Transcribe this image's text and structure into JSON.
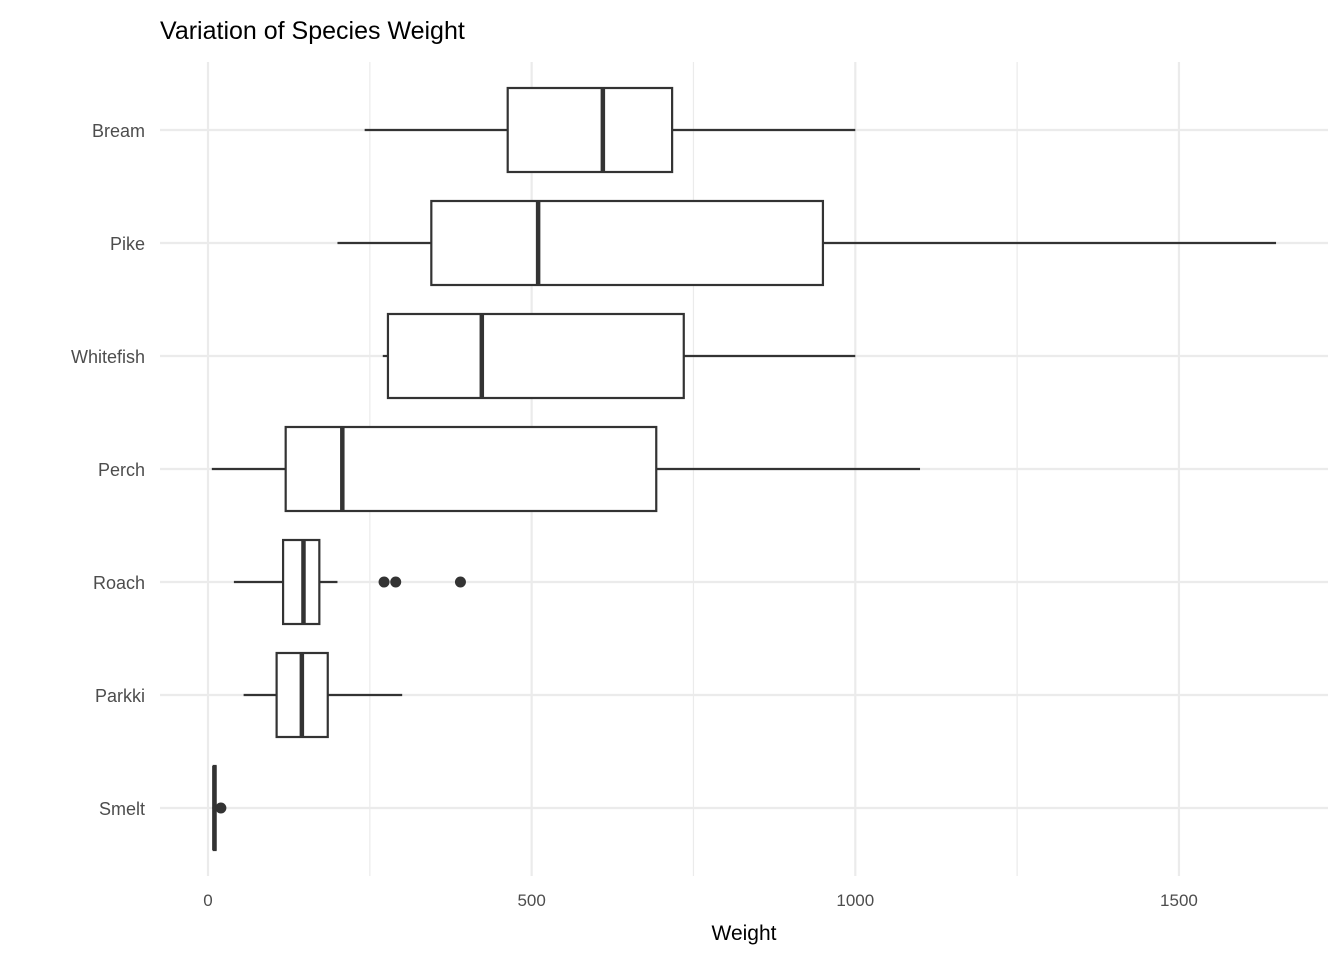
{
  "chart_data": {
    "type": "boxplot",
    "title": "Variation of Species Weight",
    "xlabel": "Weight",
    "ylabel": "",
    "xlim": [
      -75,
      1730
    ],
    "x_ticks": [
      0,
      500,
      1000,
      1500
    ],
    "x_minor_ticks": [
      250,
      750,
      1250
    ],
    "grid": true,
    "orientation": "horizontal",
    "categories": [
      "Bream",
      "Pike",
      "Whitefish",
      "Perch",
      "Roach",
      "Parkki",
      "Smelt"
    ],
    "boxes": [
      {
        "name": "Bream",
        "whisker_low": 242,
        "q1": 463,
        "median": 610,
        "q3": 717,
        "whisker_high": 1000,
        "outliers": []
      },
      {
        "name": "Pike",
        "whisker_low": 200,
        "q1": 345,
        "median": 510,
        "q3": 950,
        "whisker_high": 1650,
        "outliers": []
      },
      {
        "name": "Whitefish",
        "whisker_low": 270,
        "q1": 278,
        "median": 423,
        "q3": 735,
        "whisker_high": 1000,
        "outliers": []
      },
      {
        "name": "Perch",
        "whisker_low": 5.9,
        "q1": 120,
        "median": 207.5,
        "q3": 692.5,
        "whisker_high": 1100,
        "outliers": []
      },
      {
        "name": "Roach",
        "whisker_low": 40,
        "q1": 116,
        "median": 147.5,
        "q3": 172,
        "whisker_high": 200,
        "outliers": [
          272,
          290,
          390
        ]
      },
      {
        "name": "Parkki",
        "whisker_low": 55,
        "q1": 106,
        "median": 145,
        "q3": 185,
        "whisker_high": 300,
        "outliers": []
      },
      {
        "name": "Smelt",
        "whisker_low": 6.7,
        "q1": 8.8,
        "median": 9.85,
        "q3": 11.7,
        "whisker_high": 13.4,
        "outliers": [
          19.9
        ]
      }
    ],
    "colors": {
      "box_stroke": "#333333",
      "box_fill": "#ffffff",
      "grid": "#ebebeb",
      "text": "#4d4d4d"
    }
  }
}
